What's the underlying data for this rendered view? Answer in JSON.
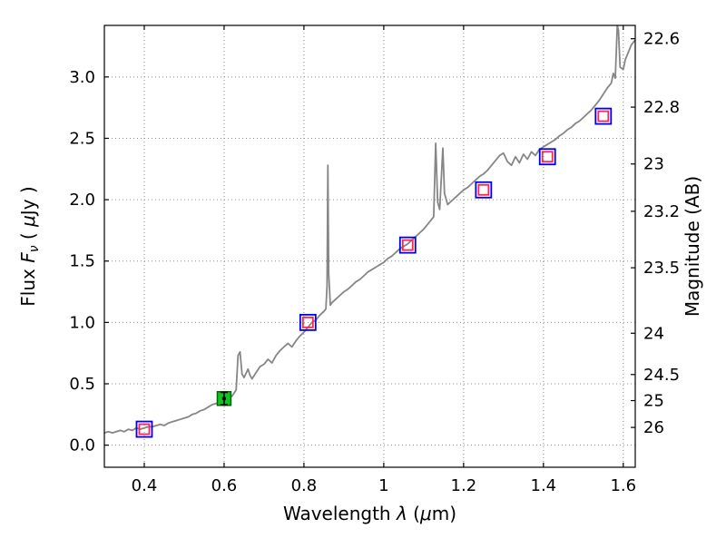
{
  "figure": {
    "background": "#ffffff"
  },
  "chart_data": {
    "type": "line+scatter",
    "title": "",
    "xlabel_parts": [
      {
        "t": "Wavelength  "
      },
      {
        "t": "λ",
        "italic": true
      },
      {
        "t": " ("
      },
      {
        "t": "μ",
        "italic": true
      },
      {
        "t": "m)"
      }
    ],
    "ylabel_left_parts": [
      {
        "t": "Flux  "
      },
      {
        "t": "F",
        "italic": true
      },
      {
        "t": "ν",
        "italic": true,
        "sub": true
      },
      {
        "t": "  ( "
      },
      {
        "t": "μ",
        "italic": true
      },
      {
        "t": "Jy )"
      }
    ],
    "ylabel_right": "Magnitude (AB)",
    "xlim": [
      0.3,
      1.63
    ],
    "ylim": [
      -0.18,
      3.42
    ],
    "grid": true,
    "legend": "none",
    "x_ticks": [
      {
        "v": 0.4,
        "label": "0.4"
      },
      {
        "v": 0.6,
        "label": "0.6"
      },
      {
        "v": 0.8,
        "label": "0.8"
      },
      {
        "v": 1.0,
        "label": "1"
      },
      {
        "v": 1.2,
        "label": "1.2"
      },
      {
        "v": 1.4,
        "label": "1.4"
      },
      {
        "v": 1.6,
        "label": "1.6"
      }
    ],
    "y_ticks_left": [
      {
        "v": 0.0,
        "label": "0.0"
      },
      {
        "v": 0.5,
        "label": "0.5"
      },
      {
        "v": 1.0,
        "label": "1.0"
      },
      {
        "v": 1.5,
        "label": "1.5"
      },
      {
        "v": 2.0,
        "label": "2.0"
      },
      {
        "v": 2.5,
        "label": "2.5"
      },
      {
        "v": 3.0,
        "label": "3.0"
      }
    ],
    "y_ticks_right": [
      {
        "mag": 22.6,
        "label": "22.6"
      },
      {
        "mag": 22.8,
        "label": "22.8"
      },
      {
        "mag": 23.0,
        "label": "23"
      },
      {
        "mag": 23.2,
        "label": "23.2"
      },
      {
        "mag": 23.5,
        "label": "23.5"
      },
      {
        "mag": 24.0,
        "label": "24"
      },
      {
        "mag": 24.5,
        "label": "24.5"
      },
      {
        "mag": 25.0,
        "label": "25"
      },
      {
        "mag": 26.0,
        "label": "26"
      }
    ],
    "ab_zeropoint": 23.9,
    "style": {
      "spine": "#000000",
      "grid": "#8c8c8c",
      "spectrum": "#868686",
      "marker_outer": "#0000ee",
      "marker_inner": "#ff2255",
      "green_face": "#0fc420",
      "green_edge": "#006600",
      "errorbar": "#000000"
    },
    "spectrum": {
      "name": "model-spectrum",
      "width": 1.8,
      "points": [
        [
          0.3,
          0.1
        ],
        [
          0.31,
          0.11
        ],
        [
          0.32,
          0.1
        ],
        [
          0.33,
          0.11
        ],
        [
          0.34,
          0.12
        ],
        [
          0.35,
          0.11
        ],
        [
          0.36,
          0.13
        ],
        [
          0.37,
          0.12
        ],
        [
          0.38,
          0.14
        ],
        [
          0.39,
          0.13
        ],
        [
          0.4,
          0.14
        ],
        [
          0.41,
          0.15
        ],
        [
          0.42,
          0.15
        ],
        [
          0.43,
          0.16
        ],
        [
          0.44,
          0.17
        ],
        [
          0.45,
          0.16
        ],
        [
          0.46,
          0.18
        ],
        [
          0.47,
          0.19
        ],
        [
          0.48,
          0.2
        ],
        [
          0.49,
          0.21
        ],
        [
          0.5,
          0.22
        ],
        [
          0.51,
          0.23
        ],
        [
          0.52,
          0.25
        ],
        [
          0.53,
          0.26
        ],
        [
          0.54,
          0.28
        ],
        [
          0.55,
          0.29
        ],
        [
          0.56,
          0.31
        ],
        [
          0.57,
          0.33
        ],
        [
          0.58,
          0.34
        ],
        [
          0.59,
          0.35
        ],
        [
          0.6,
          0.36
        ],
        [
          0.61,
          0.38
        ],
        [
          0.62,
          0.4
        ],
        [
          0.63,
          0.45
        ],
        [
          0.635,
          0.73
        ],
        [
          0.64,
          0.76
        ],
        [
          0.645,
          0.58
        ],
        [
          0.65,
          0.55
        ],
        [
          0.66,
          0.62
        ],
        [
          0.665,
          0.57
        ],
        [
          0.67,
          0.54
        ],
        [
          0.68,
          0.59
        ],
        [
          0.69,
          0.64
        ],
        [
          0.7,
          0.66
        ],
        [
          0.71,
          0.7
        ],
        [
          0.72,
          0.67
        ],
        [
          0.73,
          0.73
        ],
        [
          0.74,
          0.77
        ],
        [
          0.75,
          0.8
        ],
        [
          0.76,
          0.83
        ],
        [
          0.77,
          0.8
        ],
        [
          0.78,
          0.85
        ],
        [
          0.79,
          0.89
        ],
        [
          0.8,
          0.92
        ],
        [
          0.81,
          0.96
        ],
        [
          0.82,
          1.0
        ],
        [
          0.83,
          1.02
        ],
        [
          0.84,
          1.06
        ],
        [
          0.85,
          1.09
        ],
        [
          0.855,
          1.11
        ],
        [
          0.858,
          1.3
        ],
        [
          0.86,
          2.28
        ],
        [
          0.862,
          1.4
        ],
        [
          0.866,
          1.14
        ],
        [
          0.87,
          1.16
        ],
        [
          0.88,
          1.19
        ],
        [
          0.89,
          1.22
        ],
        [
          0.9,
          1.25
        ],
        [
          0.91,
          1.27
        ],
        [
          0.92,
          1.3
        ],
        [
          0.93,
          1.33
        ],
        [
          0.94,
          1.35
        ],
        [
          0.95,
          1.38
        ],
        [
          0.96,
          1.41
        ],
        [
          0.97,
          1.43
        ],
        [
          0.98,
          1.45
        ],
        [
          0.99,
          1.47
        ],
        [
          1.0,
          1.49
        ],
        [
          1.01,
          1.52
        ],
        [
          1.02,
          1.54
        ],
        [
          1.03,
          1.57
        ],
        [
          1.04,
          1.6
        ],
        [
          1.05,
          1.62
        ],
        [
          1.06,
          1.64
        ],
        [
          1.07,
          1.67
        ],
        [
          1.08,
          1.7
        ],
        [
          1.09,
          1.73
        ],
        [
          1.1,
          1.76
        ],
        [
          1.11,
          1.8
        ],
        [
          1.12,
          1.84
        ],
        [
          1.125,
          1.86
        ],
        [
          1.13,
          2.46
        ],
        [
          1.135,
          1.98
        ],
        [
          1.14,
          1.92
        ],
        [
          1.148,
          2.42
        ],
        [
          1.152,
          2.05
        ],
        [
          1.16,
          1.96
        ],
        [
          1.17,
          1.99
        ],
        [
          1.18,
          2.02
        ],
        [
          1.19,
          2.05
        ],
        [
          1.2,
          2.08
        ],
        [
          1.21,
          2.1
        ],
        [
          1.22,
          2.13
        ],
        [
          1.23,
          2.16
        ],
        [
          1.24,
          2.19
        ],
        [
          1.25,
          2.21
        ],
        [
          1.26,
          2.24
        ],
        [
          1.27,
          2.28
        ],
        [
          1.28,
          2.32
        ],
        [
          1.29,
          2.36
        ],
        [
          1.3,
          2.38
        ],
        [
          1.31,
          2.31
        ],
        [
          1.32,
          2.28
        ],
        [
          1.33,
          2.35
        ],
        [
          1.34,
          2.3
        ],
        [
          1.35,
          2.37
        ],
        [
          1.36,
          2.33
        ],
        [
          1.37,
          2.39
        ],
        [
          1.38,
          2.36
        ],
        [
          1.39,
          2.41
        ],
        [
          1.4,
          2.43
        ],
        [
          1.41,
          2.45
        ],
        [
          1.42,
          2.47
        ],
        [
          1.43,
          2.49
        ],
        [
          1.44,
          2.52
        ],
        [
          1.45,
          2.54
        ],
        [
          1.46,
          2.57
        ],
        [
          1.47,
          2.59
        ],
        [
          1.48,
          2.62
        ],
        [
          1.49,
          2.64
        ],
        [
          1.5,
          2.67
        ],
        [
          1.51,
          2.7
        ],
        [
          1.52,
          2.73
        ],
        [
          1.53,
          2.77
        ],
        [
          1.54,
          2.81
        ],
        [
          1.55,
          2.86
        ],
        [
          1.56,
          2.91
        ],
        [
          1.57,
          2.95
        ],
        [
          1.575,
          3.03
        ],
        [
          1.58,
          2.99
        ],
        [
          1.585,
          3.42
        ],
        [
          1.588,
          3.38
        ],
        [
          1.592,
          3.08
        ],
        [
          1.6,
          3.06
        ],
        [
          1.605,
          3.14
        ],
        [
          1.61,
          3.18
        ],
        [
          1.615,
          3.22
        ],
        [
          1.62,
          3.26
        ],
        [
          1.63,
          3.3
        ]
      ]
    },
    "photometry": [
      {
        "x": 0.4,
        "flux": 0.13,
        "marker": "double-square"
      },
      {
        "x": 0.6,
        "flux": 0.38,
        "marker": "filled-square",
        "err": 0.05
      },
      {
        "x": 0.81,
        "flux": 1.0,
        "marker": "double-square"
      },
      {
        "x": 1.06,
        "flux": 1.63,
        "marker": "double-square"
      },
      {
        "x": 1.25,
        "flux": 2.08,
        "marker": "double-square"
      },
      {
        "x": 1.41,
        "flux": 2.35,
        "marker": "double-square"
      },
      {
        "x": 1.55,
        "flux": 2.68,
        "marker": "double-square"
      }
    ]
  }
}
